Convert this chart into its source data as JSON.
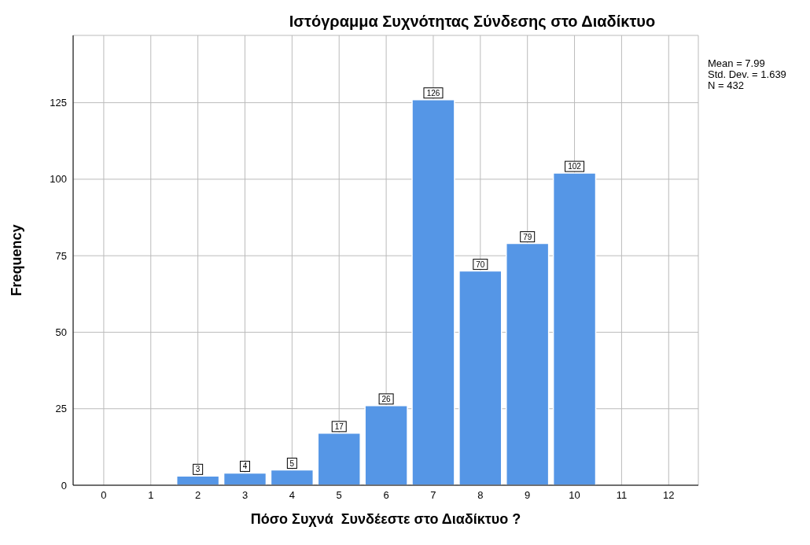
{
  "chart_data": {
    "type": "histogram",
    "title": "Ιστόγραμμα Συχνότητας Σύνδεσης στο Διαδίκτυο",
    "xlabel": "Πόσο Συχνά  Συνδέεστε στο Διαδίκτυο ?",
    "ylabel": "Frequency",
    "bins": [
      1.5,
      2.5,
      3.5,
      4.5,
      5.5,
      6.5,
      7.5,
      8.5,
      9.5,
      10.5
    ],
    "values": [
      3,
      4,
      5,
      17,
      26,
      126,
      70,
      79,
      102
    ],
    "color": "#5596e6",
    "xlim": [
      -0.65,
      12.63
    ],
    "xticks": [
      0,
      1,
      2,
      3,
      4,
      5,
      6,
      7,
      8,
      9,
      10,
      11,
      12
    ],
    "ylim": [
      0,
      147
    ],
    "yticks": [
      0,
      25,
      50,
      75,
      100,
      125
    ],
    "grid": true,
    "data_labels": true,
    "annotations": [
      "Mean = 7.99",
      "Std. Dev. = 1.639",
      "N = 432"
    ]
  }
}
